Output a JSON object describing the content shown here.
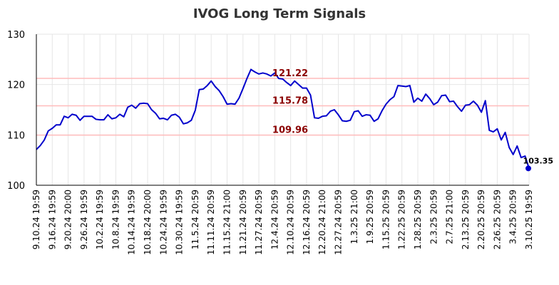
{
  "chart_data": {
    "type": "line",
    "title": "IVOG Long Term Signals",
    "xlabel": "",
    "ylabel": "",
    "ylim": [
      100,
      130
    ],
    "yticks": [
      100,
      110,
      120,
      130
    ],
    "x_tick_labels": [
      "9.10.24 19:59",
      "9.16.24 19:59",
      "9.20.24 20:00",
      "9.26.24 19:59",
      "10.2.24 19:59",
      "10.8.24 19:59",
      "10.14.24 19:59",
      "10.18.24 20:00",
      "10.24.24 19:59",
      "10.30.24 19:59",
      "11.5.24 20:59",
      "11.11.24 20:59",
      "11.15.24 21:00",
      "11.21.24 20:59",
      "11.27.24 20:59",
      "12.4.24 20:59",
      "12.10.24 20:59",
      "12.16.24 20:59",
      "12.20.24 21:00",
      "12.27.24 20:59",
      "1.3.25 21:00",
      "1.9.25 20:59",
      "1.15.25 20:59",
      "1.22.25 20:59",
      "1.28.25 20:59",
      "2.3.25 20:59",
      "2.7.25 21:00",
      "2.13.25 20:59",
      "2.20.25 20:59",
      "2.26.25 20:59",
      "3.4.25 20:59",
      "3.10.25 19:59"
    ],
    "grid": true,
    "legend": "none",
    "series": [
      {
        "values": [
          107.1,
          107.9,
          109.0,
          110.8,
          111.3,
          112.0,
          112.0,
          113.7,
          113.4,
          114.1,
          113.9,
          112.9,
          113.7,
          113.7,
          113.7,
          113.1,
          113.0,
          113.0,
          114.0,
          113.2,
          113.4,
          114.1,
          113.6,
          115.5,
          115.9,
          115.3,
          116.2,
          116.3,
          116.2,
          115.0,
          114.3,
          113.2,
          113.3,
          113.0,
          113.9,
          114.1,
          113.5,
          112.2,
          112.4,
          112.9,
          114.9,
          119.0,
          119.1,
          119.8,
          120.7,
          119.6,
          118.8,
          117.6,
          116.1,
          116.2,
          116.1,
          117.3,
          119.2,
          121.2,
          123.0,
          122.5,
          122.1,
          122.3,
          122.1,
          121.7,
          122.3,
          121.2,
          121.1,
          120.4,
          119.8,
          120.7,
          120.0,
          119.3,
          119.3,
          117.9,
          113.4,
          113.3,
          113.7,
          113.8,
          114.7,
          115.0,
          114.0,
          112.8,
          112.7,
          112.9,
          114.6,
          114.8,
          113.7,
          114.0,
          113.9,
          112.7,
          113.2,
          114.8,
          116.1,
          117.0,
          117.6,
          119.8,
          119.7,
          119.6,
          119.8,
          116.5,
          117.3,
          116.7,
          118.1,
          117.2,
          116.0,
          116.5,
          117.8,
          117.9,
          116.6,
          116.7,
          115.6,
          114.7,
          115.9,
          116.0,
          116.7,
          115.9,
          114.5,
          116.8,
          110.9,
          110.6,
          111.2,
          109.0,
          110.5,
          107.5,
          106.1,
          107.8,
          105.5,
          105.8,
          103.35
        ],
        "color": "#0000cc"
      }
    ],
    "signal_lines": [
      {
        "value": 121.22,
        "label": "121.22",
        "color": "#ffbbbb",
        "label_color": "#8b0000"
      },
      {
        "value": 115.78,
        "label": "115.78",
        "color": "#ffbbbb",
        "label_color": "#8b0000"
      },
      {
        "value": 109.96,
        "label": "109.96",
        "color": "#ffbbbb",
        "label_color": "#8b0000"
      }
    ],
    "last_point": {
      "value": 103.35,
      "label": "103.35",
      "color": "#0000cc"
    }
  }
}
